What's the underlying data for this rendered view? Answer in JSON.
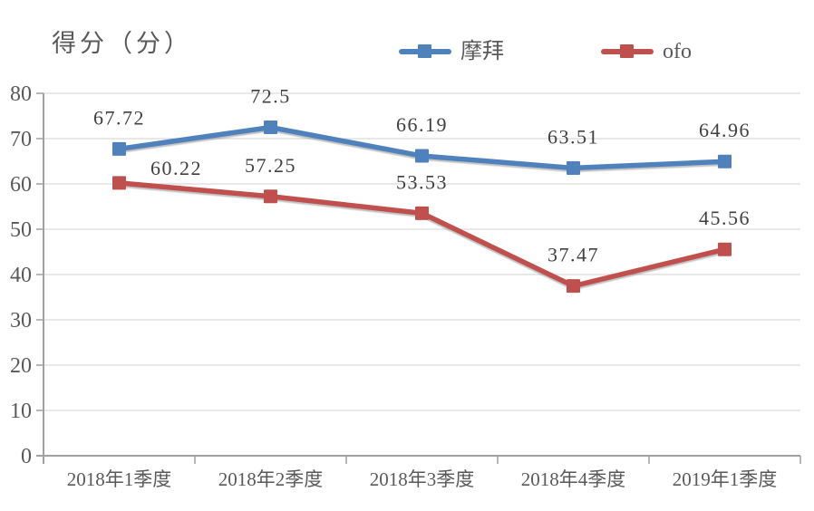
{
  "chart_data": {
    "type": "line",
    "title": "得分（分）",
    "xlabel": "",
    "ylabel": "得分（分）",
    "categories": [
      "2018年1季度",
      "2018年2季度",
      "2018年3季度",
      "2018年4季度",
      "2019年1季度"
    ],
    "series": [
      {
        "name": "摩拜",
        "values": [
          67.72,
          72.5,
          66.19,
          63.51,
          64.96
        ],
        "color": "#4F81BD"
      },
      {
        "name": "ofo",
        "values": [
          60.22,
          57.25,
          53.53,
          37.47,
          45.56
        ],
        "color": "#C0504D"
      }
    ],
    "ylim": [
      0,
      80
    ],
    "ytick_step": 10,
    "ytick_labels": [
      "0",
      "10",
      "20",
      "30",
      "40",
      "50",
      "60",
      "70",
      "80"
    ],
    "grid": true,
    "legend_position": "top",
    "data_labels": true,
    "colors": {
      "grid": "#D9D9D9",
      "axis": "#A0A0A0",
      "tick_text": "#595959",
      "label_text": "#404040",
      "title_text": "#595959"
    }
  }
}
